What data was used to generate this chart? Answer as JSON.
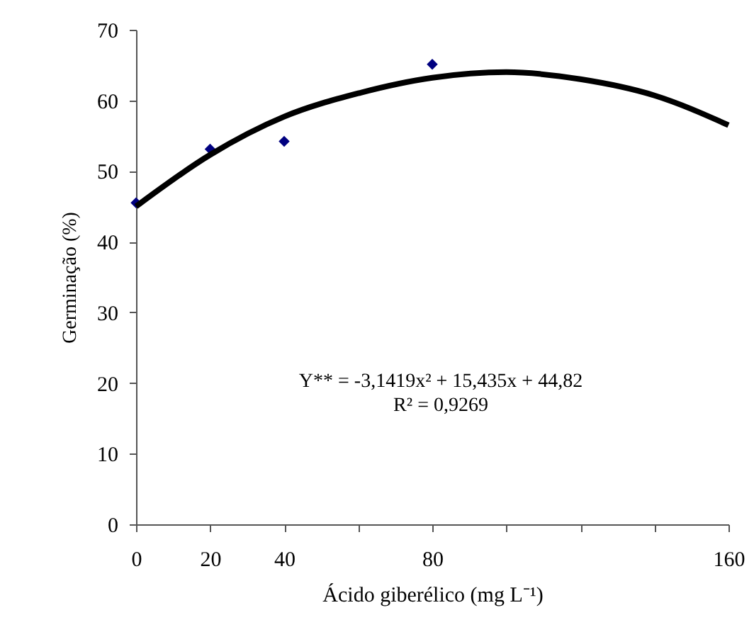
{
  "chart_data": {
    "type": "scatter",
    "xlabel": "Ácido giberélico (mg L⁻¹)",
    "ylabel": "Germinação (%)",
    "annotations": [
      "Y** = -3,1419x² + 15,435x + 44,82",
      "R² = 0,9269"
    ],
    "xlim": [
      0,
      160
    ],
    "xticks": [
      0,
      20,
      40,
      {
        "value": 60,
        "label": null
      },
      80,
      {
        "value": 100,
        "label": null
      },
      {
        "value": 120,
        "label": null
      },
      {
        "value": 140,
        "label": null
      },
      160
    ],
    "ylim": [
      0,
      70
    ],
    "yticks": [
      0,
      10,
      20,
      30,
      40,
      50,
      60,
      70
    ],
    "grid": false,
    "series": [
      {
        "color": "#000080",
        "marker": "diamond",
        "x": [
          0,
          20,
          40,
          80
        ],
        "values": [
          45.5,
          53.1,
          54.2,
          65.1
        ]
      },
      {
        "type": "line",
        "color": "#000000",
        "marker": "none",
        "line_style": "solid",
        "x": [
          0,
          20,
          40,
          60,
          80,
          100,
          120,
          140,
          160
        ],
        "values": [
          45,
          52.3,
          57.7,
          61.0,
          63.2,
          64,
          63.0,
          60.7,
          56.5
        ]
      }
    ]
  }
}
